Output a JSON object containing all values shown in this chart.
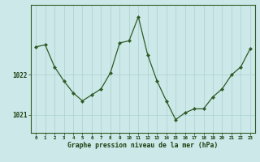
{
  "hours": [
    0,
    1,
    2,
    3,
    4,
    5,
    6,
    7,
    8,
    9,
    10,
    11,
    12,
    13,
    14,
    15,
    16,
    17,
    18,
    19,
    20,
    21,
    22,
    23
  ],
  "pressure": [
    1022.7,
    1022.75,
    1022.2,
    1021.85,
    1021.55,
    1021.35,
    1021.5,
    1021.65,
    1022.05,
    1022.8,
    1022.85,
    1023.45,
    1022.5,
    1021.85,
    1021.35,
    1020.88,
    1021.05,
    1021.15,
    1021.15,
    1021.45,
    1021.65,
    1022.0,
    1022.2,
    1022.65
  ],
  "line_color": "#2d5c27",
  "marker_color": "#2d5c27",
  "bg_color": "#cce8e8",
  "grid_color": "#aad0d0",
  "border_color": "#2d5c27",
  "label_color": "#1a4010",
  "title": "Graphe pression niveau de la mer (hPa)",
  "yticks": [
    1021,
    1022
  ],
  "ylim": [
    1020.55,
    1023.75
  ],
  "xlim": [
    -0.5,
    23.5
  ]
}
